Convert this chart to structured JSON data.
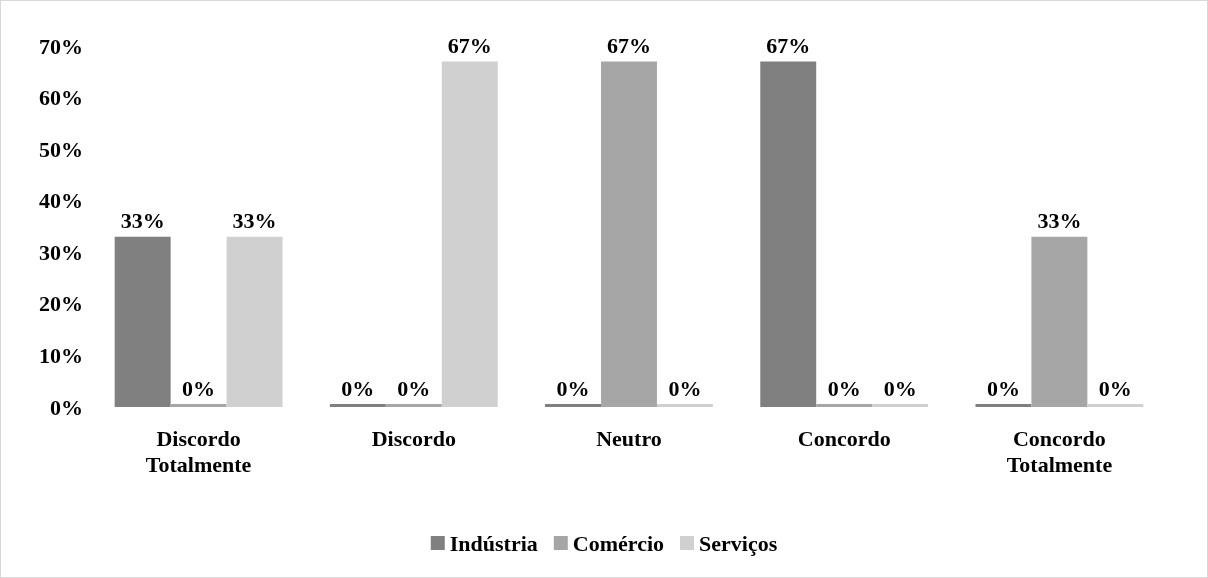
{
  "chart_data": {
    "type": "bar",
    "categories": [
      "Discordo\nTotalmente",
      "Discordo",
      "Neutro",
      "Concordo",
      "Concordo\nTotalmente"
    ],
    "series": [
      {
        "name": "Indústria",
        "color": "#808080",
        "values": [
          33,
          0,
          0,
          67,
          0
        ],
        "value_labels": [
          "33%",
          "0%",
          "0%",
          "67%",
          "0%"
        ]
      },
      {
        "name": "Comércio",
        "color": "#a6a6a6",
        "values": [
          0,
          0,
          67,
          0,
          33
        ],
        "value_labels": [
          "0%",
          "0%",
          "67%",
          "0%",
          "33%"
        ]
      },
      {
        "name": "Serviços",
        "color": "#d0d0d0",
        "values": [
          33,
          67,
          0,
          0,
          0
        ],
        "value_labels": [
          "33%",
          "67%",
          "0%",
          "0%",
          "0%"
        ]
      }
    ],
    "ylim": [
      0,
      70
    ],
    "yticks": [
      {
        "value": 0,
        "label": "0%"
      },
      {
        "value": 10,
        "label": "10%"
      },
      {
        "value": 20,
        "label": "20%"
      },
      {
        "value": 30,
        "label": "30%"
      },
      {
        "value": 40,
        "label": "40%"
      },
      {
        "value": 50,
        "label": "50%"
      },
      {
        "value": 60,
        "label": "60%"
      },
      {
        "value": 70,
        "label": "70%"
      }
    ],
    "grid": false,
    "legend": "bottom"
  }
}
